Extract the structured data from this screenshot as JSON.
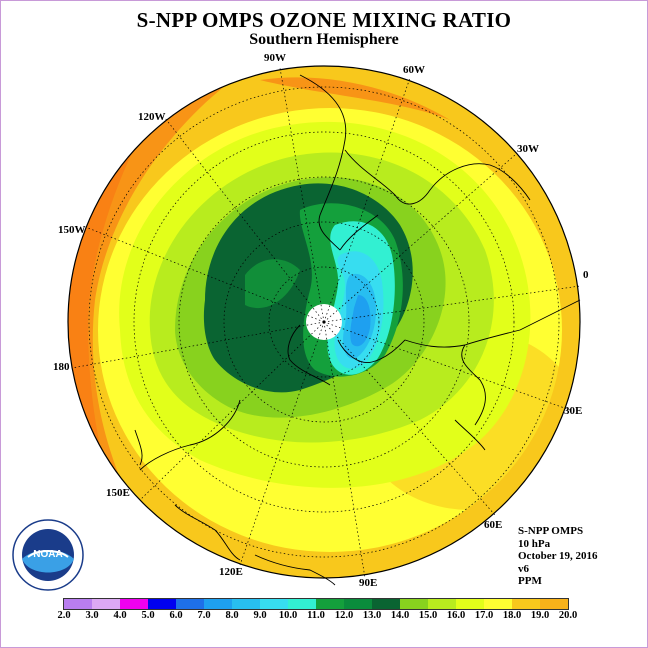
{
  "title": "S-NPP OMPS OZONE MIXING RATIO",
  "subtitle": "Southern Hemisphere",
  "longitude_labels": [
    "90W",
    "60W",
    "30W",
    "0",
    "30E",
    "60E",
    "90E",
    "120E",
    "150E",
    "180",
    "150W",
    "120W"
  ],
  "info": {
    "instrument": "S-NPP OMPS",
    "level": "10 hPa",
    "date": "October 19, 2016",
    "version": "v6",
    "units": "PPM"
  },
  "logo": {
    "text": "NOAA",
    "icon": "noaa-logo"
  },
  "colorbar": {
    "colors": [
      "#b97ef0",
      "#dca8f4",
      "#f000f0",
      "#0000f0",
      "#1e70e8",
      "#1ea0f0",
      "#28bef0",
      "#37ddf0",
      "#32f0d2",
      "#14a03c",
      "#0a8c3c",
      "#0a6432",
      "#88d21e",
      "#b8ec1e",
      "#e2ff1a",
      "#ffff32",
      "#f8c81c",
      "#f8b21a",
      "#f89416",
      "#fa6e12",
      "#f01414",
      "#a0522d"
    ],
    "labels": [
      "2.0",
      "3.0",
      "4.0",
      "5.0",
      "6.0",
      "7.0",
      "8.0",
      "9.0",
      "10.0",
      "11.0",
      "12.0",
      "13.0",
      "14.0",
      "15.0",
      "16.0",
      "17.0",
      "18.0",
      "19.0",
      "20.0"
    ]
  }
}
